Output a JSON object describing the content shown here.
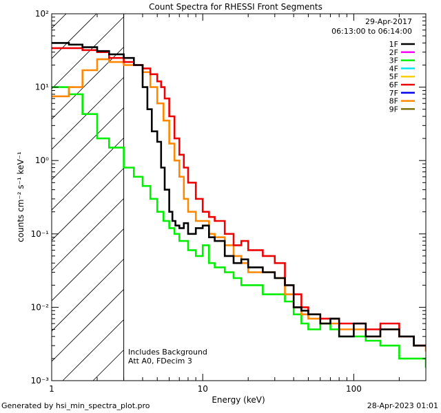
{
  "chart_data": {
    "type": "line",
    "title": "Count Spectra for RHESSI Front Segments",
    "xlabel": "Energy (keV)",
    "ylabel": "counts cm⁻² s⁻¹ keV⁻¹",
    "xscale": "log",
    "yscale": "log",
    "xlim": [
      1,
      300
    ],
    "ylim": [
      0.001,
      100
    ],
    "x_ticks": [
      {
        "value": 10,
        "label": "10"
      },
      {
        "value": 100,
        "label": "100"
      }
    ],
    "y_ticks": [
      {
        "value": 100,
        "label": "10²"
      },
      {
        "value": 10,
        "label": "10¹"
      },
      {
        "value": 1,
        "label": "10⁰"
      },
      {
        "value": 0.1,
        "label": "10⁻¹"
      },
      {
        "value": 0.01,
        "label": "10⁻²"
      },
      {
        "value": 0.001,
        "label": "10⁻³"
      }
    ],
    "header": {
      "date": "29-Apr-2017",
      "time_range": "06:13:00 to 06:14:00"
    },
    "attenuator_cutoff_kev": 3,
    "annotations": [
      "Includes Background",
      "Att A0, FDecim 3"
    ],
    "legend": [
      {
        "name": "1F",
        "color": "#000000"
      },
      {
        "name": "2F",
        "color": "#ff00ff"
      },
      {
        "name": "3F",
        "color": "#00ee00"
      },
      {
        "name": "4F",
        "color": "#00e5ee"
      },
      {
        "name": "5F",
        "color": "#ffcc00"
      },
      {
        "name": "6F",
        "color": "#ee0000"
      },
      {
        "name": "7F",
        "color": "#0000ee"
      },
      {
        "name": "8F",
        "color": "#ff8800"
      },
      {
        "name": "9F",
        "color": "#7f6f00"
      }
    ],
    "series": [
      {
        "name": "1F",
        "color": "#000000",
        "x": [
          1,
          1.3,
          1.6,
          2,
          2.4,
          3,
          3.5,
          4,
          4.3,
          4.6,
          5,
          5.3,
          5.6,
          6,
          6.3,
          6.6,
          7,
          7.5,
          8,
          9,
          10,
          11,
          12,
          14,
          16,
          18,
          20,
          25,
          30,
          35,
          40,
          45,
          50,
          60,
          70,
          80,
          100,
          120,
          150,
          200,
          250,
          300
        ],
        "y": [
          40,
          38,
          35,
          31,
          28,
          25,
          20,
          10,
          5,
          2.5,
          1.8,
          0.8,
          0.4,
          0.2,
          0.15,
          0.13,
          0.12,
          0.14,
          0.1,
          0.12,
          0.13,
          0.09,
          0.08,
          0.05,
          0.04,
          0.045,
          0.035,
          0.03,
          0.025,
          0.02,
          0.01,
          0.009,
          0.008,
          0.006,
          0.007,
          0.004,
          0.006,
          0.004,
          0.005,
          0.004,
          0.003,
          0.003
        ]
      },
      {
        "name": "3F",
        "color": "#00ee00",
        "x": [
          1,
          1.15,
          1.3,
          1.6,
          2,
          2.4,
          3,
          3.5,
          4,
          4.5,
          5,
          5.5,
          6,
          6.5,
          7,
          8,
          9,
          10,
          11,
          12,
          14,
          16,
          18,
          20,
          25,
          30,
          35,
          40,
          45,
          50,
          60,
          70,
          80,
          100,
          120,
          150,
          200,
          250,
          300
        ],
        "y": [
          10,
          10,
          8,
          4.3,
          2,
          1.5,
          0.8,
          0.6,
          0.45,
          0.3,
          0.2,
          0.15,
          0.12,
          0.1,
          0.08,
          0.06,
          0.05,
          0.07,
          0.04,
          0.035,
          0.03,
          0.025,
          0.02,
          0.02,
          0.015,
          0.015,
          0.012,
          0.008,
          0.006,
          0.005,
          0.006,
          0.005,
          0.004,
          0.004,
          0.0035,
          0.003,
          0.002,
          0.002,
          0.0015
        ]
      },
      {
        "name": "6F",
        "color": "#ee0000",
        "x": [
          1,
          1.3,
          1.6,
          2,
          2.4,
          3,
          3.5,
          4,
          4.5,
          5,
          5.3,
          5.6,
          6,
          6.5,
          7,
          7.5,
          8,
          9,
          10,
          11,
          12,
          14,
          16,
          18,
          20,
          25,
          30,
          35,
          40,
          45,
          50,
          60,
          70,
          80,
          100,
          120,
          150,
          200,
          250,
          300
        ],
        "y": [
          34,
          34,
          32,
          30,
          25,
          22,
          20,
          18,
          15,
          12,
          10,
          7,
          4,
          2,
          1.2,
          0.8,
          0.5,
          0.3,
          0.2,
          0.17,
          0.15,
          0.1,
          0.07,
          0.08,
          0.06,
          0.05,
          0.04,
          0.02,
          0.015,
          0.01,
          0.008,
          0.007,
          0.007,
          0.006,
          0.006,
          0.005,
          0.006,
          0.004,
          0.003,
          0.003
        ]
      },
      {
        "name": "8F",
        "color": "#ff8800",
        "x": [
          1,
          1.15,
          1.3,
          1.6,
          2,
          2.4,
          3,
          3.5,
          4,
          4.5,
          5,
          5.5,
          6,
          6.5,
          7,
          7.5,
          8,
          9,
          10,
          11,
          12,
          14,
          16,
          18,
          20,
          25,
          30,
          35,
          40,
          45,
          50,
          60,
          70,
          80,
          100,
          120,
          150,
          200,
          250,
          300
        ],
        "y": [
          7.5,
          7.5,
          10,
          17,
          24,
          22,
          20,
          20,
          16,
          10,
          6,
          3.5,
          1.7,
          1,
          0.6,
          0.3,
          0.2,
          0.15,
          0.15,
          0.1,
          0.09,
          0.07,
          0.05,
          0.04,
          0.03,
          0.03,
          0.025,
          0.015,
          0.01,
          0.008,
          0.007,
          0.006,
          0.006,
          0.005,
          0.005,
          0.004,
          0.005,
          0.004,
          0.003,
          0.0025
        ]
      }
    ]
  },
  "footer": {
    "generated_by": "Generated by hsi_min_spectra_plot.pro",
    "timestamp": "28-Apr-2023 01:01"
  }
}
